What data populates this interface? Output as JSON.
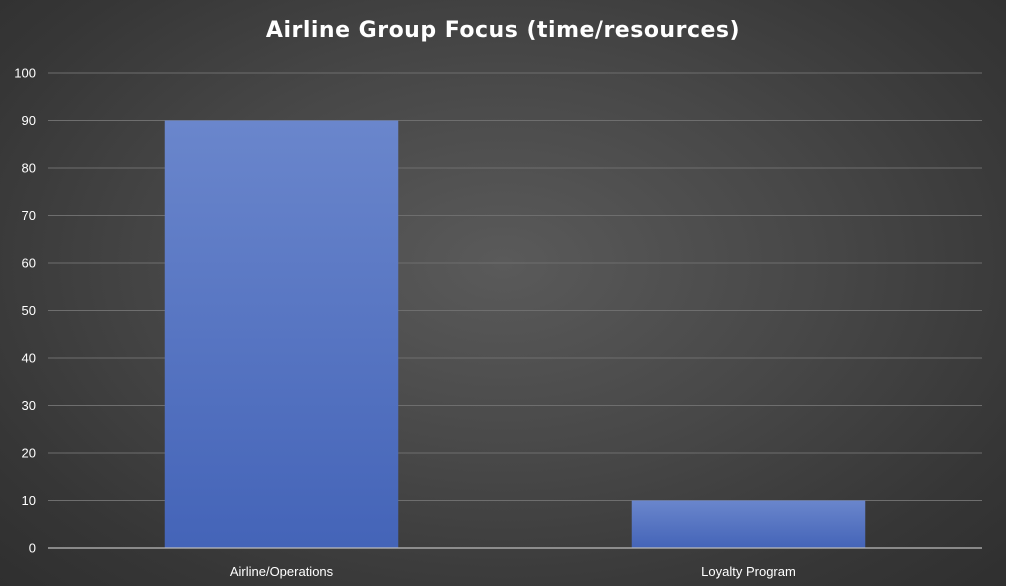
{
  "chart_data": {
    "type": "bar",
    "title": "Airline Group Focus (time/resources)",
    "categories": [
      "Airline/Operations",
      "Loyalty Program"
    ],
    "values": [
      90,
      10
    ],
    "ylim": [
      0,
      100
    ],
    "yticks": [
      0,
      10,
      20,
      30,
      40,
      50,
      60,
      70,
      80,
      90,
      100
    ],
    "grid": true,
    "legend": "none",
    "colors": {
      "bar_top": "#6a86cc",
      "bar_bottom": "#4464b8",
      "gridline": "#6e6e6e",
      "axis": "#bdbdbd",
      "text": "#ffffff"
    }
  }
}
